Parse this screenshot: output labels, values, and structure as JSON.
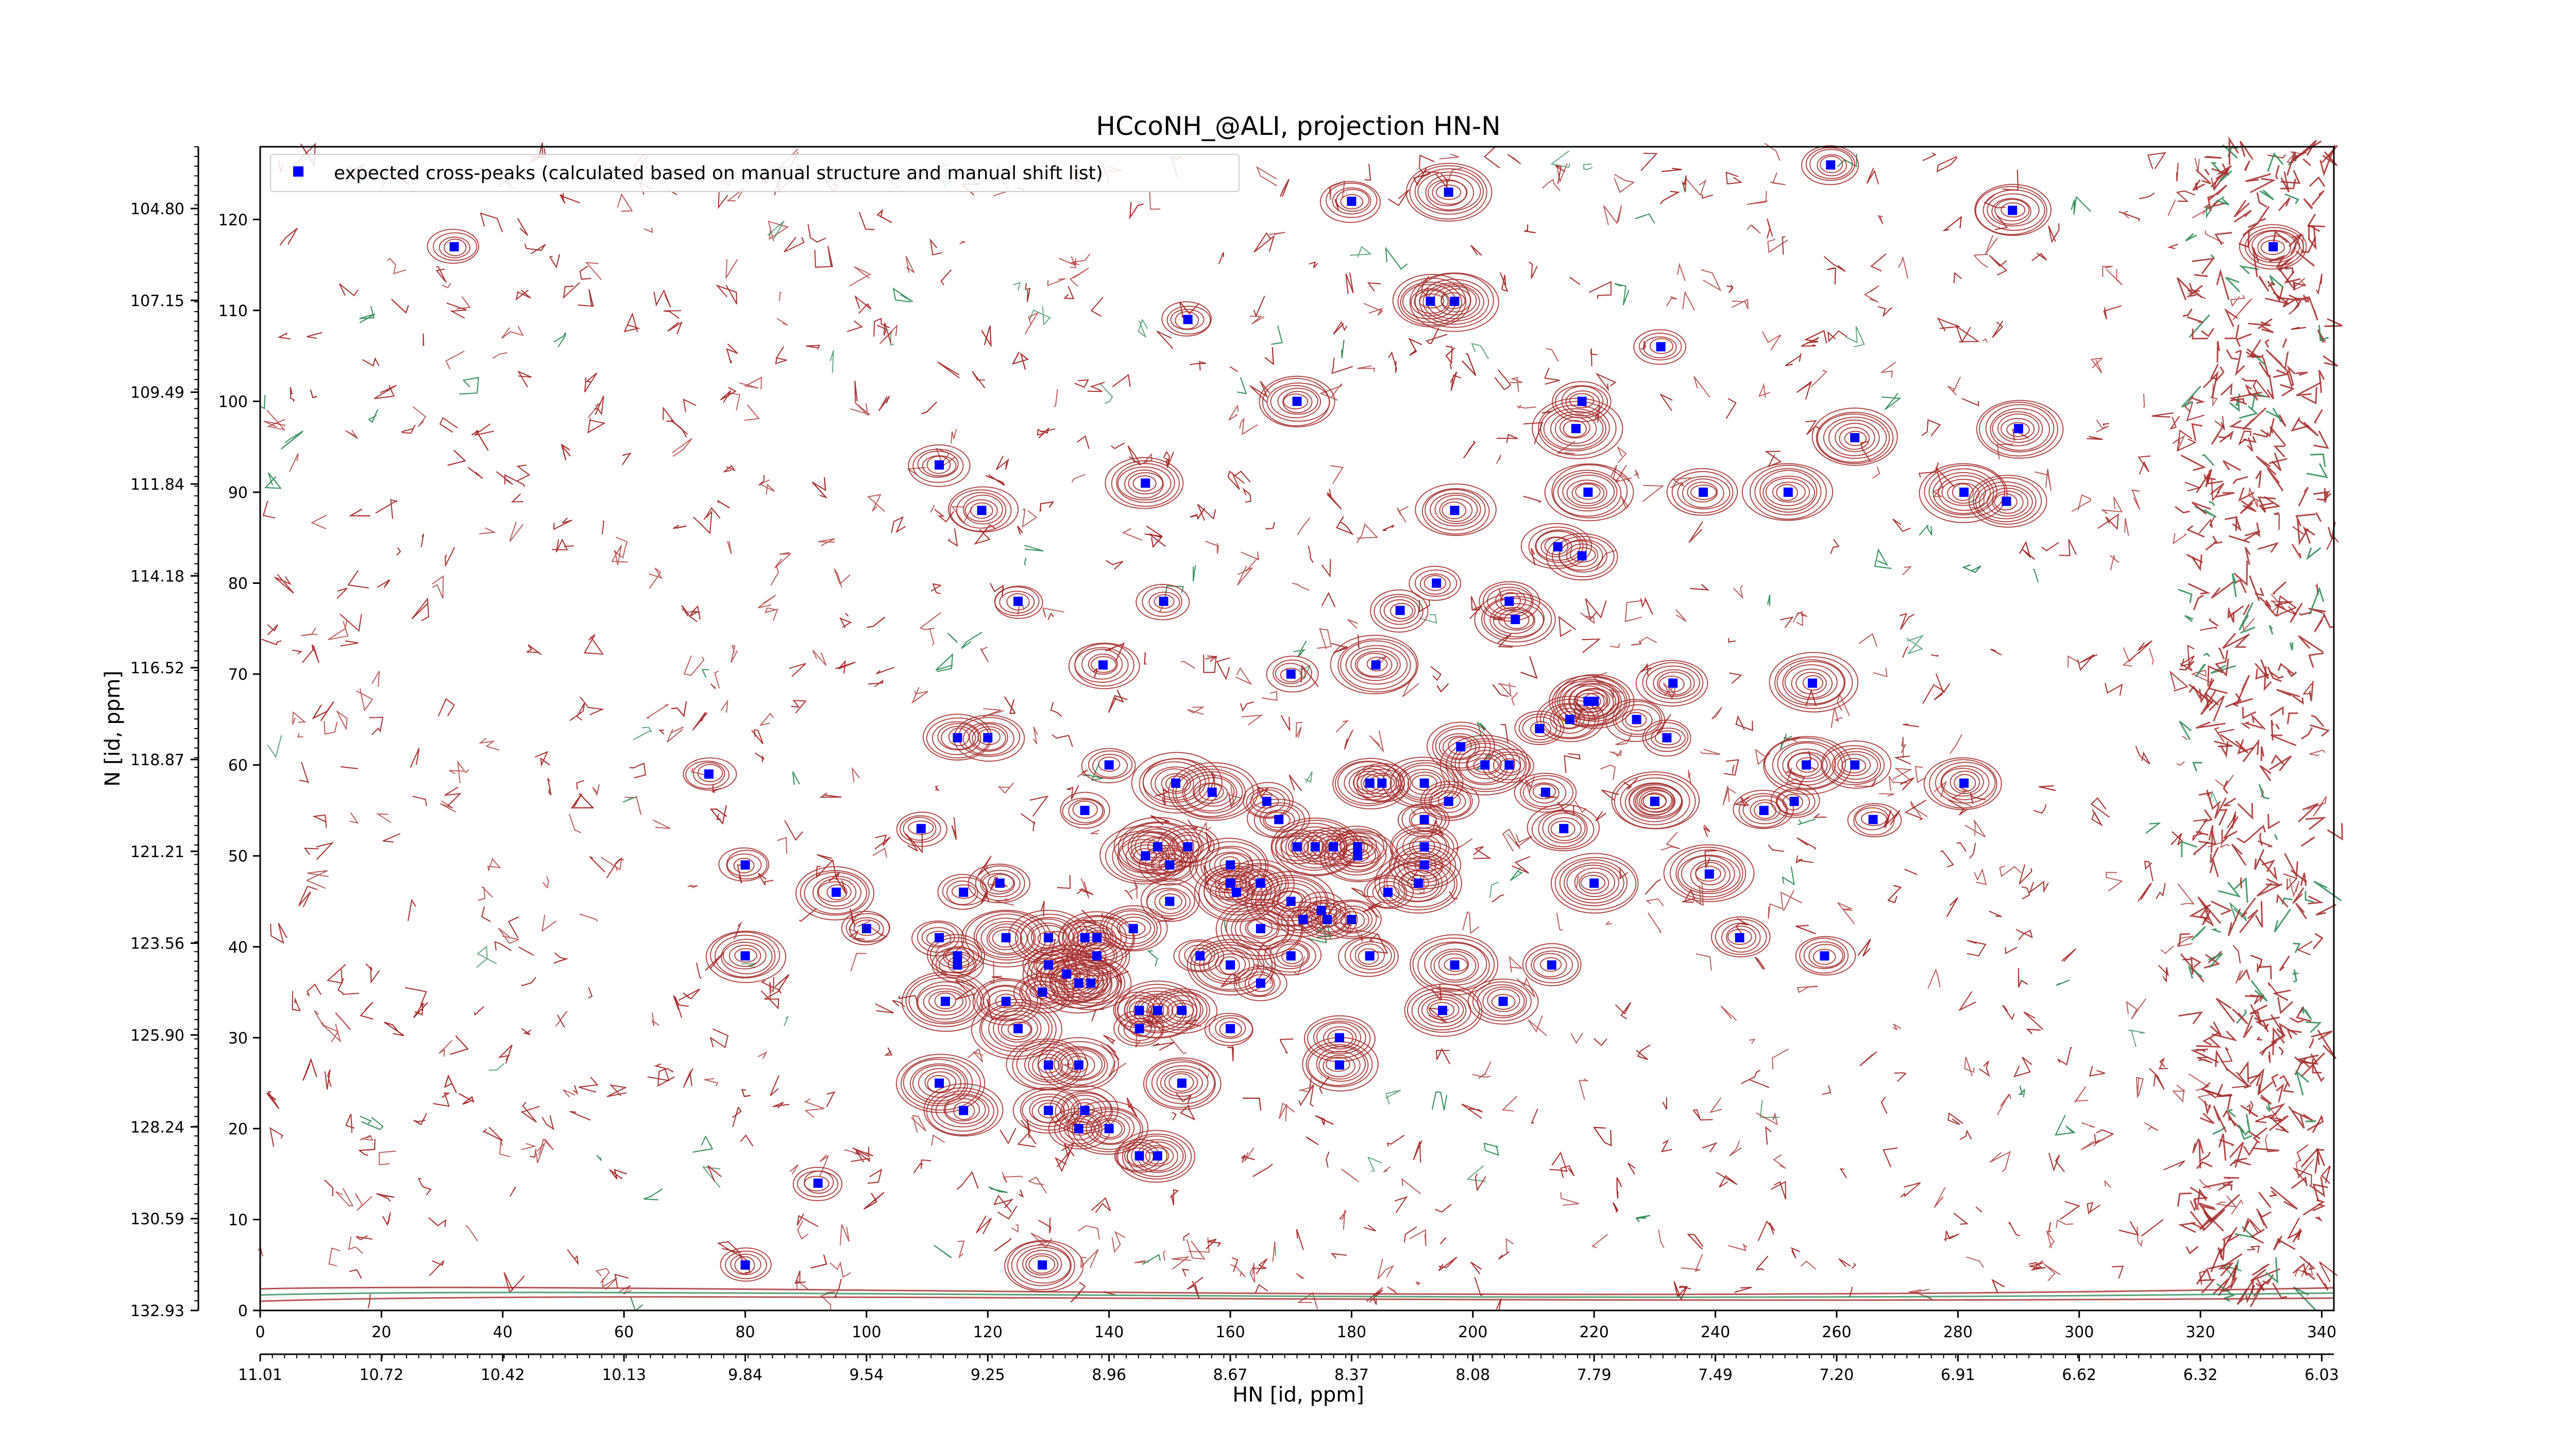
{
  "chart_data": {
    "type": "scatter",
    "title": "HCcoNH_@ALI, projection HN-N",
    "xlabel": "HN [id, ppm]",
    "ylabel": "N [id, ppm]",
    "xlim": [
      0,
      342
    ],
    "ylim": [
      0,
      128
    ],
    "x_ticks_index": [
      "0",
      "20",
      "40",
      "60",
      "80",
      "100",
      "120",
      "140",
      "160",
      "180",
      "200",
      "220",
      "240",
      "260",
      "280",
      "300",
      "320",
      "340"
    ],
    "x_ticks_ppm": [
      "11.01",
      "10.72",
      "10.42",
      "10.13",
      "9.84",
      "9.54",
      "9.25",
      "8.96",
      "8.67",
      "8.37",
      "8.08",
      "7.79",
      "7.49",
      "7.20",
      "6.91",
      "6.62",
      "6.32",
      "6.03"
    ],
    "y_ticks_index": [
      "0",
      "10",
      "20",
      "30",
      "40",
      "50",
      "60",
      "70",
      "80",
      "90",
      "100",
      "110",
      "120"
    ],
    "y_ticks_ppm": [
      "132.93",
      "130.59",
      "128.24",
      "125.90",
      "123.56",
      "121.21",
      "118.87",
      "116.52",
      "114.18",
      "111.84",
      "109.49",
      "107.15",
      "104.80"
    ],
    "grid": false,
    "legend_position": "top-left",
    "legend": {
      "label": "expected cross-peaks (calculated based on manual structure and manual shift list)",
      "color": "#0000ff"
    },
    "contour_colors": {
      "positive": "#a52a2a",
      "negative": "#2e8b57"
    },
    "series": [
      {
        "name": "expected cross-peaks (calculated based on manual structure and manual shift list)",
        "color": "#0000ff",
        "points": [
          [
            32,
            117
          ],
          [
            180,
            122
          ],
          [
            196,
            123
          ],
          [
            259,
            126
          ],
          [
            289,
            121
          ],
          [
            332,
            117
          ],
          [
            193,
            111
          ],
          [
            197,
            111
          ],
          [
            153,
            109
          ],
          [
            231,
            106
          ],
          [
            171,
            100
          ],
          [
            218,
            100
          ],
          [
            217,
            97
          ],
          [
            263,
            96
          ],
          [
            290,
            97
          ],
          [
            112,
            93
          ],
          [
            146,
            91
          ],
          [
            219,
            90
          ],
          [
            238,
            90
          ],
          [
            252,
            90
          ],
          [
            281,
            90
          ],
          [
            288,
            89
          ],
          [
            119,
            88
          ],
          [
            197,
            88
          ],
          [
            214,
            84
          ],
          [
            218,
            83
          ],
          [
            194,
            80
          ],
          [
            125,
            78
          ],
          [
            149,
            78
          ],
          [
            188,
            77
          ],
          [
            206,
            78
          ],
          [
            207,
            76
          ],
          [
            184,
            71
          ],
          [
            139,
            71
          ],
          [
            170,
            70
          ],
          [
            219,
            67
          ],
          [
            220,
            67
          ],
          [
            256,
            69
          ],
          [
            233,
            69
          ],
          [
            216,
            65
          ],
          [
            211,
            64
          ],
          [
            227,
            65
          ],
          [
            115,
            63
          ],
          [
            120,
            63
          ],
          [
            232,
            63
          ],
          [
            140,
            60
          ],
          [
            198,
            62
          ],
          [
            74,
            59
          ],
          [
            151,
            58
          ],
          [
            192,
            58
          ],
          [
            202,
            60
          ],
          [
            206,
            60
          ],
          [
            263,
            60
          ],
          [
            230,
            56
          ],
          [
            255,
            60
          ],
          [
            212,
            57
          ],
          [
            281,
            58
          ],
          [
            157,
            57
          ],
          [
            183,
            58
          ],
          [
            185,
            58
          ],
          [
            136,
            55
          ],
          [
            166,
            56
          ],
          [
            196,
            56
          ],
          [
            248,
            55
          ],
          [
            253,
            56
          ],
          [
            215,
            53
          ],
          [
            266,
            54
          ],
          [
            168,
            54
          ],
          [
            192,
            54
          ],
          [
            230,
            56
          ],
          [
            109,
            53
          ],
          [
            171,
            51
          ],
          [
            174,
            51
          ],
          [
            177,
            51
          ],
          [
            181,
            51
          ],
          [
            192,
            51
          ],
          [
            146,
            50
          ],
          [
            148,
            51
          ],
          [
            153,
            51
          ],
          [
            181,
            50
          ],
          [
            192,
            49
          ],
          [
            80,
            49
          ],
          [
            150,
            49
          ],
          [
            160,
            49
          ],
          [
            160,
            47
          ],
          [
            165,
            47
          ],
          [
            191,
            47
          ],
          [
            186,
            46
          ],
          [
            161,
            46
          ],
          [
            122,
            47
          ],
          [
            116,
            46
          ],
          [
            95,
            46
          ],
          [
            150,
            45
          ],
          [
            170,
            45
          ],
          [
            175,
            44
          ],
          [
            239,
            48
          ],
          [
            220,
            47
          ],
          [
            180,
            43
          ],
          [
            176,
            43
          ],
          [
            165,
            42
          ],
          [
            100,
            42
          ],
          [
            112,
            41
          ],
          [
            123,
            41
          ],
          [
            130,
            41
          ],
          [
            136,
            41
          ],
          [
            138,
            41
          ],
          [
            138,
            39
          ],
          [
            144,
            42
          ],
          [
            172,
            43
          ],
          [
            115,
            39
          ],
          [
            197,
            38
          ],
          [
            183,
            39
          ],
          [
            244,
            41
          ],
          [
            258,
            39
          ],
          [
            213,
            38
          ],
          [
            160,
            38
          ],
          [
            170,
            39
          ],
          [
            155,
            39
          ],
          [
            115,
            38
          ],
          [
            130,
            38
          ],
          [
            133,
            37
          ],
          [
            135,
            36
          ],
          [
            137,
            36
          ],
          [
            80,
            39
          ],
          [
            129,
            35
          ],
          [
            148,
            33
          ],
          [
            145,
            33
          ],
          [
            152,
            33
          ],
          [
            165,
            36
          ],
          [
            123,
            34
          ],
          [
            113,
            34
          ],
          [
            195,
            33
          ],
          [
            205,
            34
          ],
          [
            145,
            31
          ],
          [
            125,
            31
          ],
          [
            160,
            31
          ],
          [
            178,
            30
          ],
          [
            130,
            27
          ],
          [
            135,
            27
          ],
          [
            178,
            27
          ],
          [
            152,
            25
          ],
          [
            112,
            25
          ],
          [
            116,
            22
          ],
          [
            130,
            22
          ],
          [
            136,
            22
          ],
          [
            135,
            20
          ],
          [
            140,
            20
          ],
          [
            145,
            17
          ],
          [
            148,
            17
          ],
          [
            92,
            14
          ],
          [
            80,
            5
          ],
          [
            129,
            5
          ]
        ]
      }
    ]
  }
}
